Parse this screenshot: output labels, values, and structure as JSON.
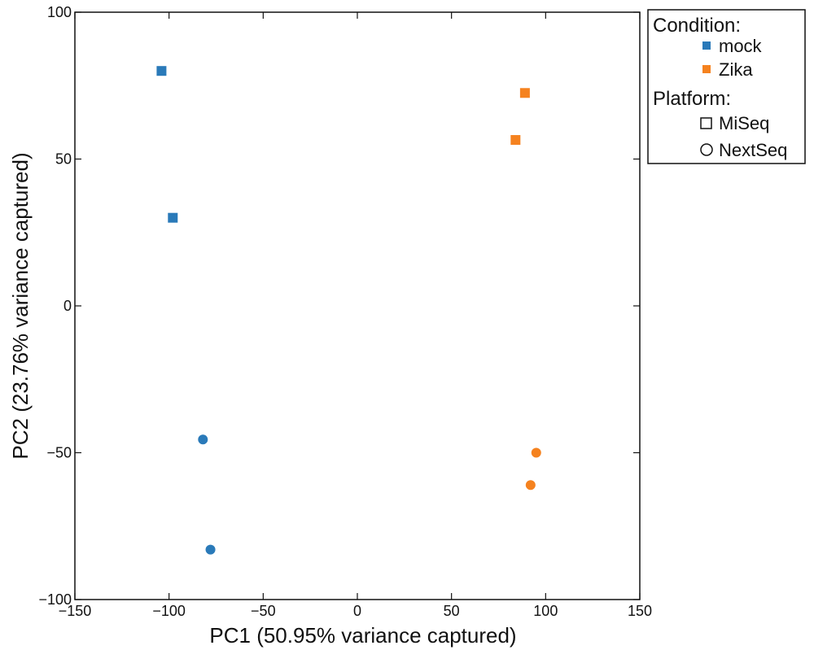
{
  "chart_data": {
    "type": "scatter",
    "xlabel": "PC1 (50.95% variance captured)",
    "ylabel": "PC2 (23.76% variance captured)",
    "xlim": [
      -150,
      150
    ],
    "ylim": [
      -100,
      100
    ],
    "x_ticks": [
      -150,
      -100,
      -50,
      0,
      50,
      100,
      150
    ],
    "y_ticks": [
      -100,
      -50,
      0,
      50,
      100
    ],
    "x_tick_labels": [
      "−150",
      "−100",
      "−50",
      "0",
      "50",
      "100",
      "150"
    ],
    "y_tick_labels": [
      "−100",
      "−50",
      "0",
      "50",
      "100"
    ],
    "grid": false,
    "legend_position": "outside-top-right",
    "legend": {
      "condition_title": "Condition:",
      "platform_title": "Platform:",
      "conditions": [
        {
          "label": "mock",
          "color": "#2a7ab9"
        },
        {
          "label": "Zika",
          "color": "#f5821f"
        }
      ],
      "platforms": [
        {
          "label": "MiSeq",
          "marker": "square"
        },
        {
          "label": "NextSeq",
          "marker": "circle"
        }
      ]
    },
    "points": [
      {
        "x": -104,
        "y": 80,
        "condition": "mock",
        "platform": "MiSeq"
      },
      {
        "x": -98,
        "y": 30,
        "condition": "mock",
        "platform": "MiSeq"
      },
      {
        "x": -82,
        "y": -45.5,
        "condition": "mock",
        "platform": "NextSeq"
      },
      {
        "x": -78,
        "y": -83,
        "condition": "mock",
        "platform": "NextSeq"
      },
      {
        "x": 89,
        "y": 72.5,
        "condition": "Zika",
        "platform": "MiSeq"
      },
      {
        "x": 84,
        "y": 56.5,
        "condition": "Zika",
        "platform": "MiSeq"
      },
      {
        "x": 95,
        "y": -50,
        "condition": "Zika",
        "platform": "NextSeq"
      },
      {
        "x": 92,
        "y": -61,
        "condition": "Zika",
        "platform": "NextSeq"
      }
    ]
  }
}
